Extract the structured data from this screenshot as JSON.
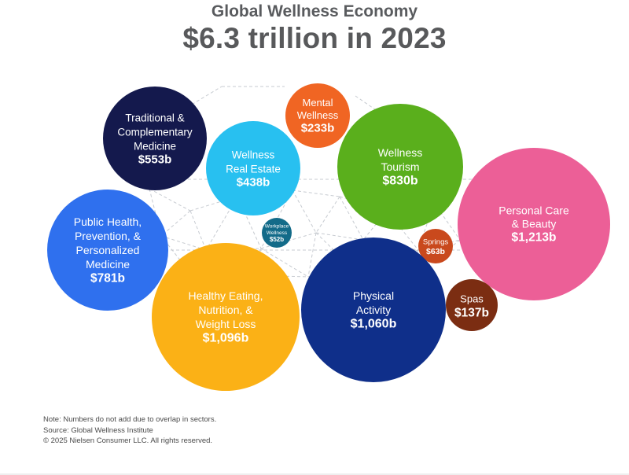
{
  "chart_data": {
    "type": "bubble",
    "subtitle": "Global Wellness Economy",
    "title": "$6.3 trillion in 2023",
    "unit": "billion USD",
    "bubbles": [
      {
        "id": "traditional-medicine",
        "label": [
          "Traditional &",
          "Complementary",
          "Medicine"
        ],
        "value_label": "$553b",
        "value": 553,
        "color": "#14194d"
      },
      {
        "id": "mental-wellness",
        "label": [
          "Mental",
          "Wellness"
        ],
        "value_label": "$233b",
        "value": 233,
        "color": "#f06523"
      },
      {
        "id": "wellness-real-estate",
        "label": [
          "Wellness",
          "Real Estate"
        ],
        "value_label": "$438b",
        "value": 438,
        "color": "#28c0f0"
      },
      {
        "id": "wellness-tourism",
        "label": [
          "Wellness",
          "Tourism"
        ],
        "value_label": "$830b",
        "value": 830,
        "color": "#5aaf1c"
      },
      {
        "id": "personal-care-beauty",
        "label": [
          "Personal Care",
          "& Beauty"
        ],
        "value_label": "$1,213b",
        "value": 1213,
        "color": "#ec5f97"
      },
      {
        "id": "public-health",
        "label": [
          "Public Health,",
          "Prevention, &",
          "Personalized",
          "Medicine"
        ],
        "value_label": "$781b",
        "value": 781,
        "color": "#2f70ee"
      },
      {
        "id": "workplace-wellness",
        "label": [
          "Workplace",
          "Wellness"
        ],
        "value_label": "$52b",
        "value": 52,
        "color": "#136b89"
      },
      {
        "id": "springs",
        "label": [
          "Springs"
        ],
        "value_label": "$63b",
        "value": 63,
        "color": "#c9491d"
      },
      {
        "id": "healthy-eating",
        "label": [
          "Healthy Eating,",
          "Nutrition, &",
          "Weight Loss"
        ],
        "value_label": "$1,096b",
        "value": 1096,
        "color": "#fbb116"
      },
      {
        "id": "physical-activity",
        "label": [
          "Physical",
          "Activity"
        ],
        "value_label": "$1,060b",
        "value": 1060,
        "color": "#0f2f8a"
      },
      {
        "id": "spas",
        "label": [
          "Spas"
        ],
        "value_label": "$137b",
        "value": 137,
        "color": "#7b2d12"
      }
    ]
  },
  "notes": {
    "note": "Note: Numbers do not add due to overlap in sectors.",
    "source": "Source: Global Wellness Institute",
    "copyright": "© 2025 Nielsen Consumer LLC. All rights reserved."
  }
}
